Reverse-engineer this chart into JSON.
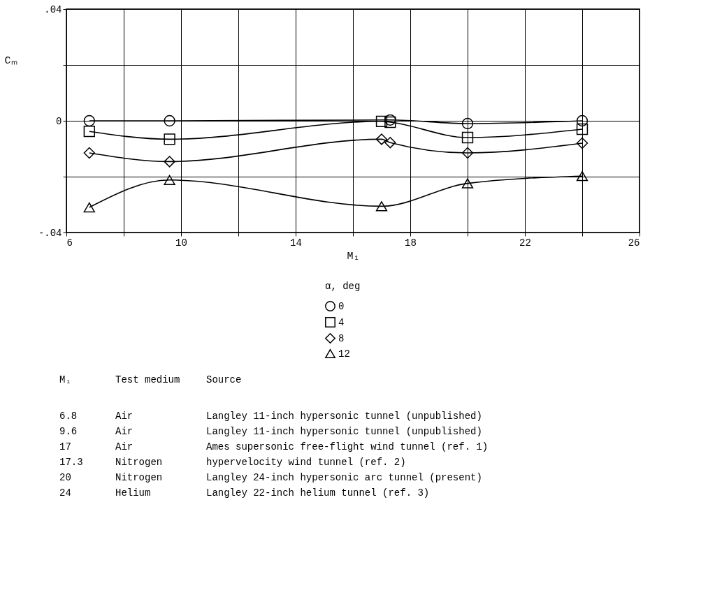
{
  "chart_data": {
    "type": "line",
    "xlabel": "M₁",
    "ylabel": "Cₘ",
    "legend_title": "α, deg",
    "x": [
      6.8,
      9.6,
      17,
      17.3,
      20,
      24
    ],
    "series": [
      {
        "name": "0",
        "color": "#000000",
        "marker": "circle",
        "values": [
          0,
          0,
          null,
          0.0003,
          -0.001,
          0
        ]
      },
      {
        "name": "4",
        "color": "#000000",
        "marker": "square",
        "values": [
          -0.0038,
          -0.0066,
          -0.0002,
          -0.0005,
          -0.006,
          -0.003
        ]
      },
      {
        "name": "8",
        "color": "#000000",
        "marker": "diamond",
        "values": [
          -0.0115,
          -0.0146,
          -0.0066,
          -0.0078,
          -0.0115,
          -0.008
        ]
      },
      {
        "name": "12",
        "color": "#000000",
        "marker": "triangle",
        "values": [
          -0.031,
          -0.0212,
          -0.0306,
          null,
          -0.0224,
          -0.0198
        ]
      }
    ],
    "xlim": [
      6,
      26
    ],
    "xticks": [
      6,
      {
        "value": 8,
        "label": null
      },
      10,
      {
        "value": 12,
        "label": null
      },
      14,
      {
        "value": 16,
        "label": null
      },
      18,
      {
        "value": 20,
        "label": null
      },
      22,
      {
        "value": 24,
        "label": null
      },
      26
    ],
    "ylim": [
      -0.04,
      0.04
    ],
    "yticks": [
      {
        "value": -0.04,
        "label": "-.04"
      },
      {
        "value": -0.02,
        "label": null
      },
      0,
      {
        "value": 0.02,
        "label": null
      },
      {
        "value": 0.04,
        "label": ".04"
      }
    ],
    "grid": true,
    "legend": "bottom",
    "line_style": "solid",
    "annotations": [
      "M₁",
      "Test medium",
      "Source",
      "6.8",
      "Air",
      "Langley 11-inch hypersonic tunnel (unpublished)",
      "9.6",
      "Air",
      "Langley 11-inch hypersonic tunnel (unpublished)",
      "17",
      "Air",
      "Ames supersonic free-flight wind tunnel (ref. 1)",
      "17.3",
      "Nitrogen",
      "hypervelocity wind tunnel (ref. 2)",
      "20",
      "Nitrogen",
      "Langley 24-inch hypersonic arc tunnel (present)",
      "24",
      "Helium",
      "Langley 22-inch helium tunnel (ref. 3)"
    ]
  }
}
